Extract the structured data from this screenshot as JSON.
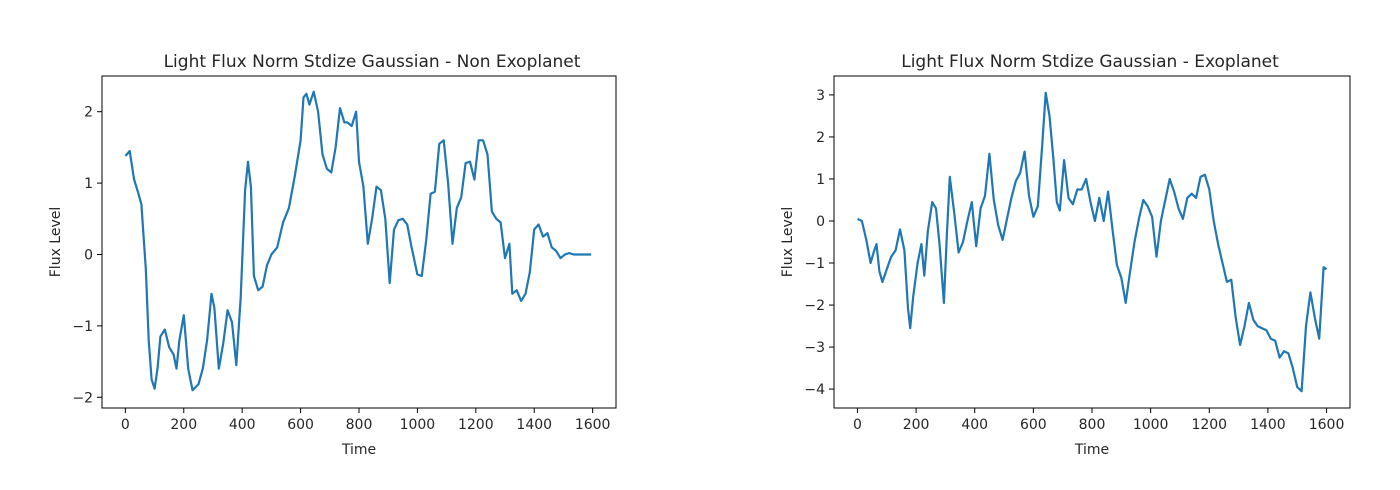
{
  "chart_data": [
    {
      "type": "line",
      "title": "Light Flux Norm Stdize Gaussian - Non Exoplanet",
      "xlabel": "Time",
      "ylabel": "Flux Level",
      "xlim": [
        -80,
        1680
      ],
      "ylim": [
        -2.15,
        2.5
      ],
      "xticks": [
        0,
        200,
        400,
        600,
        800,
        1000,
        1200,
        1400,
        1600
      ],
      "yticks": [
        -2,
        -1,
        0,
        1,
        2
      ],
      "ytick_labels": [
        "−2",
        "−1",
        "0",
        "1",
        "2"
      ],
      "grid": false,
      "color": "#1f77b4",
      "series": [
        {
          "x": [
            0,
            15,
            30,
            45,
            55,
            70,
            80,
            90,
            100,
            110,
            120,
            135,
            150,
            165,
            175,
            185,
            200,
            215,
            230,
            250,
            265,
            280,
            295,
            305,
            320,
            335,
            350,
            365,
            380,
            395,
            410,
            420,
            430,
            440,
            455,
            470,
            485,
            500,
            520,
            540,
            560,
            580,
            600,
            610,
            620,
            630,
            645,
            660,
            675,
            690,
            705,
            720,
            735,
            750,
            760,
            775,
            790,
            800,
            815,
            830,
            845,
            860,
            875,
            890,
            905,
            920,
            935,
            950,
            965,
            980,
            1000,
            1015,
            1030,
            1045,
            1060,
            1075,
            1090,
            1105,
            1120,
            1135,
            1150,
            1165,
            1180,
            1195,
            1210,
            1225,
            1240,
            1255,
            1270,
            1285,
            1300,
            1315,
            1325,
            1340,
            1355,
            1370,
            1385,
            1400,
            1415,
            1430,
            1445,
            1460,
            1475,
            1490,
            1505,
            1520,
            1535,
            1550,
            1565,
            1580,
            1595
          ],
          "y": [
            1.38,
            1.45,
            1.05,
            0.85,
            0.7,
            -0.2,
            -1.2,
            -1.75,
            -1.88,
            -1.6,
            -1.15,
            -1.05,
            -1.3,
            -1.4,
            -1.6,
            -1.2,
            -0.85,
            -1.6,
            -1.9,
            -1.82,
            -1.6,
            -1.2,
            -0.55,
            -0.75,
            -1.6,
            -1.25,
            -0.78,
            -0.95,
            -1.55,
            -0.6,
            0.9,
            1.3,
            0.95,
            -0.3,
            -0.5,
            -0.45,
            -0.15,
            0.0,
            0.1,
            0.45,
            0.65,
            1.1,
            1.6,
            2.2,
            2.25,
            2.1,
            2.28,
            2.0,
            1.4,
            1.2,
            1.15,
            1.5,
            2.05,
            1.85,
            1.85,
            1.8,
            2.0,
            1.3,
            0.95,
            0.15,
            0.5,
            0.95,
            0.9,
            0.5,
            -0.4,
            0.35,
            0.48,
            0.5,
            0.42,
            0.1,
            -0.28,
            -0.3,
            0.2,
            0.85,
            0.88,
            1.55,
            1.6,
            1.0,
            0.15,
            0.65,
            0.8,
            1.28,
            1.3,
            1.05,
            1.6,
            1.6,
            1.4,
            0.6,
            0.5,
            0.45,
            -0.05,
            0.15,
            -0.55,
            -0.5,
            -0.65,
            -0.55,
            -0.25,
            0.35,
            0.42,
            0.25,
            0.3,
            0.1,
            0.05,
            -0.05,
            0.0,
            0.02,
            0.0,
            0.0,
            0.0,
            0.0,
            0.0
          ]
        }
      ]
    },
    {
      "type": "line",
      "title": "Light Flux Norm Stdize Gaussian - Exoplanet",
      "xlabel": "Time",
      "ylabel": "Flux Level",
      "xlim": [
        -80,
        1680
      ],
      "ylim": [
        -4.45,
        3.45
      ],
      "xticks": [
        0,
        200,
        400,
        600,
        800,
        1000,
        1200,
        1400,
        1600
      ],
      "yticks": [
        -4,
        -3,
        -2,
        -1,
        0,
        1,
        2,
        3
      ],
      "ytick_labels": [
        "−4",
        "−3",
        "−2",
        "−1",
        "0",
        "1",
        "2",
        "3"
      ],
      "grid": false,
      "color": "#1f77b4",
      "series": [
        {
          "x": [
            0,
            15,
            30,
            45,
            55,
            65,
            75,
            85,
            95,
            105,
            115,
            130,
            145,
            160,
            172,
            180,
            190,
            205,
            218,
            228,
            240,
            255,
            268,
            280,
            295,
            305,
            315,
            330,
            345,
            360,
            375,
            390,
            405,
            420,
            435,
            450,
            465,
            480,
            495,
            510,
            525,
            540,
            555,
            570,
            585,
            600,
            615,
            630,
            642,
            655,
            668,
            680,
            690,
            705,
            720,
            735,
            750,
            765,
            780,
            795,
            810,
            825,
            840,
            855,
            870,
            885,
            900,
            915,
            930,
            945,
            960,
            975,
            990,
            1005,
            1020,
            1035,
            1050,
            1065,
            1080,
            1095,
            1110,
            1125,
            1140,
            1155,
            1170,
            1185,
            1200,
            1215,
            1230,
            1245,
            1260,
            1275,
            1290,
            1305,
            1320,
            1335,
            1350,
            1365,
            1380,
            1395,
            1410,
            1425,
            1440,
            1455,
            1470,
            1485,
            1500,
            1515,
            1530,
            1545,
            1560,
            1575,
            1590,
            1600
          ],
          "y": [
            0.05,
            0.0,
            -0.45,
            -1.0,
            -0.75,
            -0.55,
            -1.2,
            -1.45,
            -1.25,
            -1.05,
            -0.85,
            -0.7,
            -0.2,
            -0.7,
            -2.05,
            -2.55,
            -1.8,
            -1.0,
            -0.55,
            -1.3,
            -0.25,
            0.45,
            0.3,
            -0.55,
            -1.95,
            -0.3,
            1.05,
            0.2,
            -0.75,
            -0.5,
            0.0,
            0.45,
            -0.6,
            0.3,
            0.6,
            1.6,
            0.5,
            -0.1,
            -0.45,
            0.05,
            0.55,
            0.95,
            1.15,
            1.65,
            0.6,
            0.1,
            0.35,
            1.8,
            3.05,
            2.5,
            1.5,
            0.45,
            0.25,
            1.45,
            0.55,
            0.4,
            0.75,
            0.75,
            1.0,
            0.45,
            0.0,
            0.55,
            0.0,
            0.7,
            -0.2,
            -1.05,
            -1.35,
            -1.95,
            -1.2,
            -0.5,
            0.05,
            0.5,
            0.35,
            0.1,
            -0.85,
            0.0,
            0.5,
            1.0,
            0.7,
            0.3,
            0.05,
            0.55,
            0.65,
            0.55,
            1.05,
            1.1,
            0.75,
            0.0,
            -0.55,
            -1.0,
            -1.45,
            -1.4,
            -2.3,
            -2.95,
            -2.5,
            -1.95,
            -2.35,
            -2.5,
            -2.55,
            -2.6,
            -2.8,
            -2.85,
            -3.25,
            -3.1,
            -3.15,
            -3.5,
            -3.95,
            -4.05,
            -2.5,
            -1.7,
            -2.3,
            -2.8,
            -1.1,
            -1.15
          ]
        }
      ]
    }
  ]
}
